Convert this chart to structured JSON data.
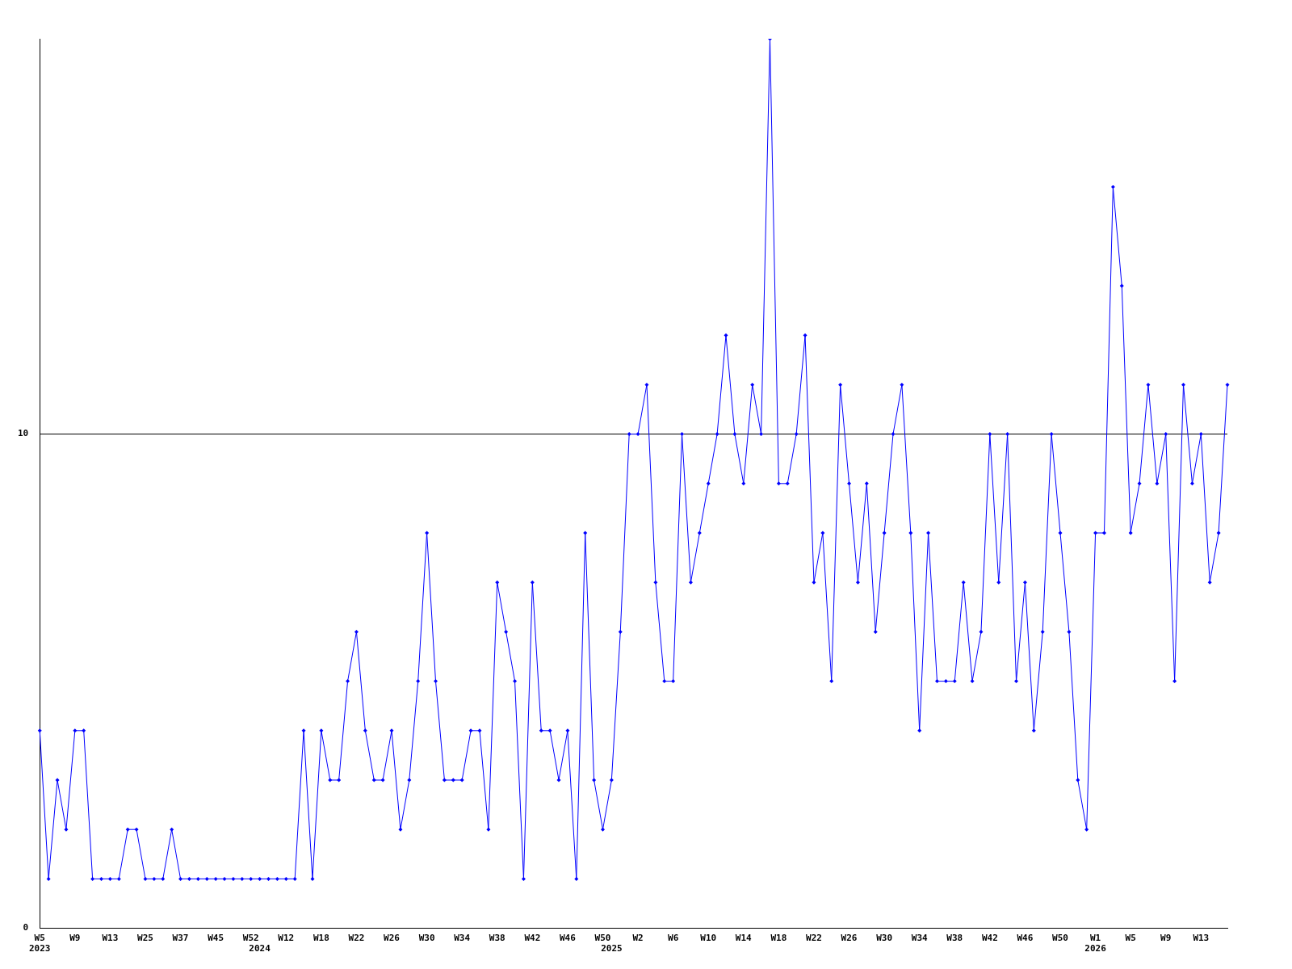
{
  "chart_data": {
    "type": "line",
    "categories": [
      "W5\n2023",
      null,
      null,
      null,
      "W9",
      null,
      null,
      null,
      "W13",
      null,
      null,
      null,
      "W25",
      null,
      null,
      null,
      "W37",
      null,
      null,
      null,
      "W45",
      null,
      null,
      null,
      "W52",
      "\n2024",
      null,
      null,
      "W12",
      null,
      null,
      null,
      "W18",
      null,
      null,
      null,
      "W22",
      null,
      null,
      null,
      "W26",
      null,
      null,
      null,
      "W30",
      null,
      null,
      null,
      "W34",
      null,
      null,
      null,
      "W38",
      null,
      null,
      null,
      "W42",
      null,
      null,
      null,
      "W46",
      null,
      null,
      null,
      "W50",
      "\n2025",
      null,
      null,
      "W2",
      null,
      null,
      null,
      "W6",
      null,
      null,
      null,
      "W10",
      null,
      null,
      null,
      "W14",
      null,
      null,
      null,
      "W18",
      null,
      null,
      null,
      "W22",
      null,
      null,
      null,
      "W26",
      null,
      null,
      null,
      "W30",
      null,
      null,
      null,
      "W34",
      null,
      null,
      null,
      "W38",
      null,
      null,
      null,
      "W42",
      null,
      null,
      null,
      "W46",
      null,
      null,
      null,
      "W50",
      null,
      null,
      null,
      "W1\n2026",
      null,
      null,
      null,
      "W5",
      null,
      null,
      null,
      "W9",
      null,
      null,
      null,
      "W13",
      null,
      null,
      null
    ],
    "series": [
      {
        "color": "#0000ff",
        "values": [
          4,
          1,
          3,
          2,
          4,
          4,
          1,
          1,
          1,
          1,
          2,
          2,
          1,
          1,
          1,
          2,
          1,
          1,
          1,
          1,
          1,
          1,
          1,
          1,
          1,
          1,
          1,
          1,
          1,
          1,
          4,
          1,
          4,
          3,
          3,
          5,
          6,
          4,
          3,
          3,
          4,
          2,
          3,
          5,
          8,
          5,
          3,
          3,
          3,
          4,
          4,
          2,
          7,
          6,
          5,
          1,
          7,
          4,
          4,
          3,
          4,
          1,
          8,
          3,
          2,
          3,
          6,
          10,
          10,
          11,
          7,
          5,
          5,
          10,
          7,
          8,
          9,
          10,
          12,
          10,
          9,
          11,
          10,
          18,
          9,
          9,
          10,
          12,
          7,
          8,
          5,
          11,
          9,
          7,
          9,
          6,
          8,
          10,
          11,
          8,
          4,
          8,
          5,
          5,
          5,
          7,
          5,
          6,
          10,
          7,
          10,
          5,
          7,
          4,
          6,
          10,
          8,
          6,
          3,
          2,
          8,
          8,
          15,
          13,
          8,
          9,
          11,
          9,
          10,
          5,
          11,
          9,
          10,
          7,
          8,
          11
        ]
      }
    ],
    "ylim": [
      0,
      18
    ],
    "yticks": [
      0,
      10
    ],
    "grid": "y",
    "marker": "diamond",
    "legend": false
  }
}
